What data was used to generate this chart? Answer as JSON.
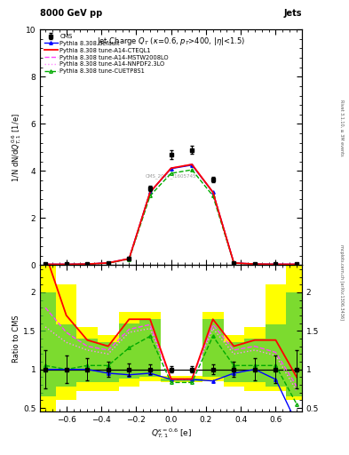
{
  "title_main": "8000 GeV pp",
  "title_right": "Jets",
  "plot_title": "Jet Charge $Q_T$ ($\\kappa$=0.6, $p_T$>400, $|\\eta|$<1.5)",
  "xlabel": "$Q_{T,1}^{\\kappa=0.6}$ [e]",
  "ylabel_main": "1/N dN/d$Q_{T,1}^{0.6}$ [1/e]",
  "ylabel_ratio": "Ratio to CMS",
  "watermark": "mcplots.cern.ch [arXiv:1306.3436]",
  "rivet_version": "Rivet 3.1.10, ≥ 3M events",
  "analysis_id": "CMS_2017_I1605745",
  "x_data": [
    -0.72,
    -0.6,
    -0.48,
    -0.36,
    -0.24,
    -0.12,
    0.0,
    0.12,
    0.24,
    0.36,
    0.48,
    0.6,
    0.72
  ],
  "cms_y": [
    0.04,
    0.04,
    0.05,
    0.1,
    0.3,
    3.25,
    4.7,
    4.9,
    3.65,
    0.1,
    0.05,
    0.04,
    0.04
  ],
  "cms_yerr": [
    0.01,
    0.01,
    0.01,
    0.02,
    0.05,
    0.12,
    0.18,
    0.18,
    0.12,
    0.02,
    0.01,
    0.01,
    0.01
  ],
  "default_y": [
    0.04,
    0.04,
    0.05,
    0.1,
    0.28,
    3.1,
    4.1,
    4.25,
    3.1,
    0.1,
    0.05,
    0.04,
    0.04
  ],
  "cteql1_y": [
    0.04,
    0.04,
    0.05,
    0.1,
    0.28,
    3.1,
    4.12,
    4.28,
    3.1,
    0.1,
    0.05,
    0.04,
    0.04
  ],
  "mstw_y": [
    0.04,
    0.04,
    0.05,
    0.1,
    0.28,
    3.1,
    4.12,
    4.28,
    3.1,
    0.1,
    0.05,
    0.04,
    0.04
  ],
  "nnpdf_y": [
    0.04,
    0.04,
    0.05,
    0.1,
    0.28,
    3.1,
    4.12,
    4.28,
    3.1,
    0.1,
    0.05,
    0.04,
    0.04
  ],
  "cuetp_y": [
    0.03,
    0.03,
    0.045,
    0.09,
    0.26,
    2.95,
    3.9,
    4.05,
    2.95,
    0.09,
    0.045,
    0.03,
    0.03
  ],
  "ratio_default": [
    1.0,
    1.0,
    1.0,
    0.95,
    0.93,
    0.95,
    0.87,
    0.87,
    0.85,
    0.95,
    1.0,
    0.87,
    0.3
  ],
  "ratio_cteql1": [
    2.5,
    1.7,
    1.38,
    1.3,
    1.65,
    1.65,
    0.875,
    0.875,
    1.65,
    1.3,
    1.38,
    1.38,
    0.9
  ],
  "ratio_mstw": [
    1.8,
    1.48,
    1.3,
    1.25,
    1.52,
    1.58,
    0.875,
    0.875,
    1.58,
    1.25,
    1.3,
    1.22,
    0.78
  ],
  "ratio_nnpdf": [
    1.55,
    1.35,
    1.25,
    1.2,
    1.48,
    1.53,
    0.875,
    0.875,
    1.53,
    1.2,
    1.25,
    1.18,
    0.72
  ],
  "ratio_cuetp": [
    1.05,
    1.0,
    1.05,
    1.05,
    1.28,
    1.43,
    0.83,
    0.83,
    1.43,
    1.05,
    1.05,
    1.05,
    0.55
  ],
  "band_x_edges": [
    -0.78,
    -0.66,
    -0.54,
    -0.42,
    -0.3,
    -0.18,
    -0.06,
    0.06,
    0.18,
    0.3,
    0.42,
    0.54,
    0.66,
    0.78
  ],
  "band_yellow_lo": [
    0.4,
    0.6,
    0.72,
    0.72,
    0.78,
    0.85,
    0.84,
    0.84,
    0.85,
    0.78,
    0.72,
    0.72,
    0.6,
    0.4
  ],
  "band_yellow_hi": [
    2.8,
    2.1,
    1.55,
    1.45,
    1.75,
    1.75,
    0.91,
    0.91,
    1.75,
    1.45,
    1.55,
    2.1,
    2.8,
    2.8
  ],
  "band_green_lo": [
    0.65,
    0.78,
    0.83,
    0.83,
    0.88,
    0.9,
    0.85,
    0.85,
    0.9,
    0.83,
    0.83,
    0.78,
    0.65,
    0.65
  ],
  "band_green_hi": [
    2.0,
    1.58,
    1.4,
    1.35,
    1.6,
    1.65,
    0.88,
    0.88,
    1.65,
    1.35,
    1.4,
    1.58,
    2.0,
    2.0
  ],
  "color_default": "#0000ff",
  "color_cteql1": "#ff0000",
  "color_mstw": "#ff44ff",
  "color_nnpdf": "#ff88ff",
  "color_cuetp": "#00aa00",
  "color_cms": "#000000",
  "ylim_main": [
    0,
    10
  ],
  "ylim_ratio": [
    0.45,
    2.35
  ],
  "xlim": [
    -0.75,
    0.75
  ]
}
